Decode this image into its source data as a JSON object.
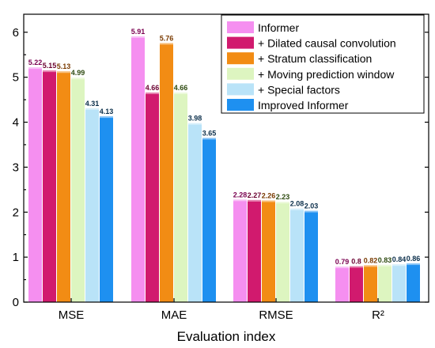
{
  "chart_data": {
    "type": "bar",
    "xlabel": "Evaluation index",
    "ylabel": "",
    "ylim": [
      0,
      6.4
    ],
    "yticks": [
      0,
      1,
      2,
      3,
      4,
      5,
      6
    ],
    "categories": [
      "MSE",
      "MAE",
      "RMSE",
      "R²"
    ],
    "series": [
      {
        "name": "Informer",
        "color": "#F58FF0",
        "values": [
          5.22,
          5.91,
          2.28,
          0.79
        ],
        "labels": [
          "5.22",
          "5.91",
          "2.28",
          "0.79"
        ],
        "label_color": "#7A0050"
      },
      {
        "name": "+ Dilated causal convolution",
        "color": "#D11A6E",
        "values": [
          5.15,
          4.66,
          2.27,
          0.8
        ],
        "labels": [
          "5.15",
          "4.66",
          "2.27",
          "0.8"
        ],
        "label_color": "#6A0030"
      },
      {
        "name": "+ Stratum classification",
        "color": "#F28C14",
        "values": [
          5.13,
          5.76,
          2.26,
          0.82
        ],
        "labels": [
          "5.13",
          "5.76",
          "2.26",
          "0.82"
        ],
        "label_color": "#7A3A00"
      },
      {
        "name": "+ Moving prediction window",
        "color": "#DDF5C0",
        "values": [
          4.99,
          4.66,
          2.23,
          0.83
        ],
        "labels": [
          "4.99",
          "4.66",
          "2.23",
          "0.83"
        ],
        "label_color": "#2E4A10"
      },
      {
        "name": "+ Special factors",
        "color": "#B9E3F8",
        "values": [
          4.31,
          3.98,
          2.08,
          0.84
        ],
        "labels": [
          "4.31",
          "3.98",
          "2.08",
          "0.84"
        ],
        "label_color": "#0A2E4A"
      },
      {
        "name": "Improved Informer",
        "color": "#1E90F0",
        "values": [
          4.13,
          3.65,
          2.03,
          0.86
        ],
        "labels": [
          "4.13",
          "3.65",
          "2.03",
          "0.86"
        ],
        "label_color": "#0A2E4A"
      }
    ],
    "grid": false,
    "legend_position": "top-right"
  }
}
